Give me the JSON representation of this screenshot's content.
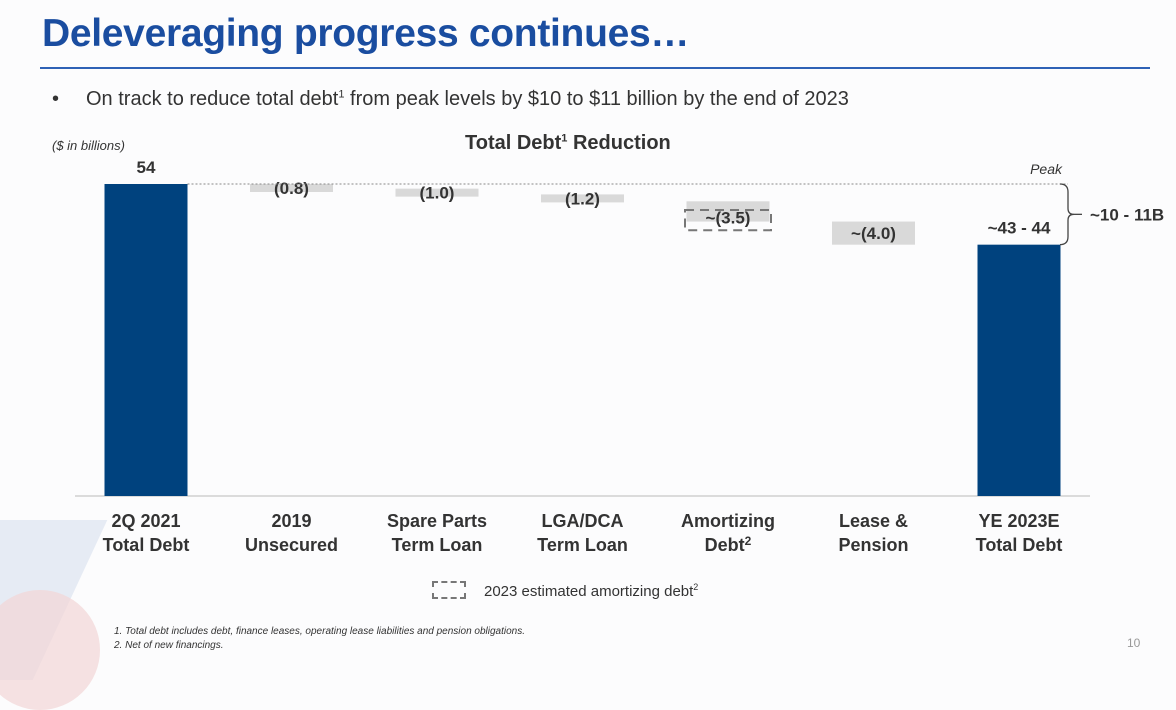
{
  "header": {
    "title": "Deleveraging progress continues…",
    "bullet_text": "On track to reduce total debt",
    "bullet_sup": "1",
    "bullet_rest": " from peak levels by $10 to $11 billion by the end of 2023"
  },
  "chart_data": {
    "type": "bar",
    "title": "Total Debt",
    "title_sup": "1",
    "title_rest": " Reduction",
    "units": "($ in billions)",
    "peak_label": "Peak",
    "range_label": "~10 - 11B",
    "categories": [
      {
        "line1": "2Q 2021",
        "line2": "Total Debt",
        "sup": ""
      },
      {
        "line1": "2019",
        "line2": "Unsecured",
        "sup": ""
      },
      {
        "line1": "Spare Parts",
        "line2": "Term Loan",
        "sup": ""
      },
      {
        "line1": "LGA/DCA",
        "line2": "Term Loan",
        "sup": ""
      },
      {
        "line1": "Amortizing",
        "line2": "Debt",
        "sup": "2"
      },
      {
        "line1": "Lease &",
        "line2": "Pension",
        "sup": ""
      },
      {
        "line1": "YE 2023E",
        "line2": "Total Debt",
        "sup": ""
      }
    ],
    "series": [
      {
        "values": [
          {
            "kind": "total",
            "start": 0,
            "end": 54,
            "label": "54"
          },
          {
            "kind": "step",
            "start": 54,
            "end": 53.2,
            "label": "(0.8)"
          },
          {
            "kind": "step",
            "start": 53.2,
            "end": 52.2,
            "label": "(1.0)"
          },
          {
            "kind": "step",
            "start": 52.2,
            "end": 51.0,
            "label": "(1.2)"
          },
          {
            "kind": "step",
            "start": 51.0,
            "end": 47.5,
            "label": "~(3.5)"
          },
          {
            "kind": "step",
            "start": 47.5,
            "end": 43.5,
            "label": "~(4.0)"
          },
          {
            "kind": "total",
            "start": 0,
            "end": 43.5,
            "label": "~43 - 44"
          }
        ]
      }
    ],
    "estimated_amortizing": {
      "category_index": 4,
      "start": 49.5,
      "end": 46.0
    },
    "ylim": [
      0,
      54
    ],
    "colors": {
      "total": "#00427e",
      "step": "#d9d9d9",
      "axis": "#d0d0d0",
      "dashed": "#777777"
    }
  },
  "legend": {
    "text": "2023 estimated amortizing debt",
    "sup": "2"
  },
  "footnotes": [
    "1. Total debt includes debt, finance leases, operating lease liabilities and pension obligations.",
    "2. Net of new financings."
  ],
  "page_number": "10"
}
